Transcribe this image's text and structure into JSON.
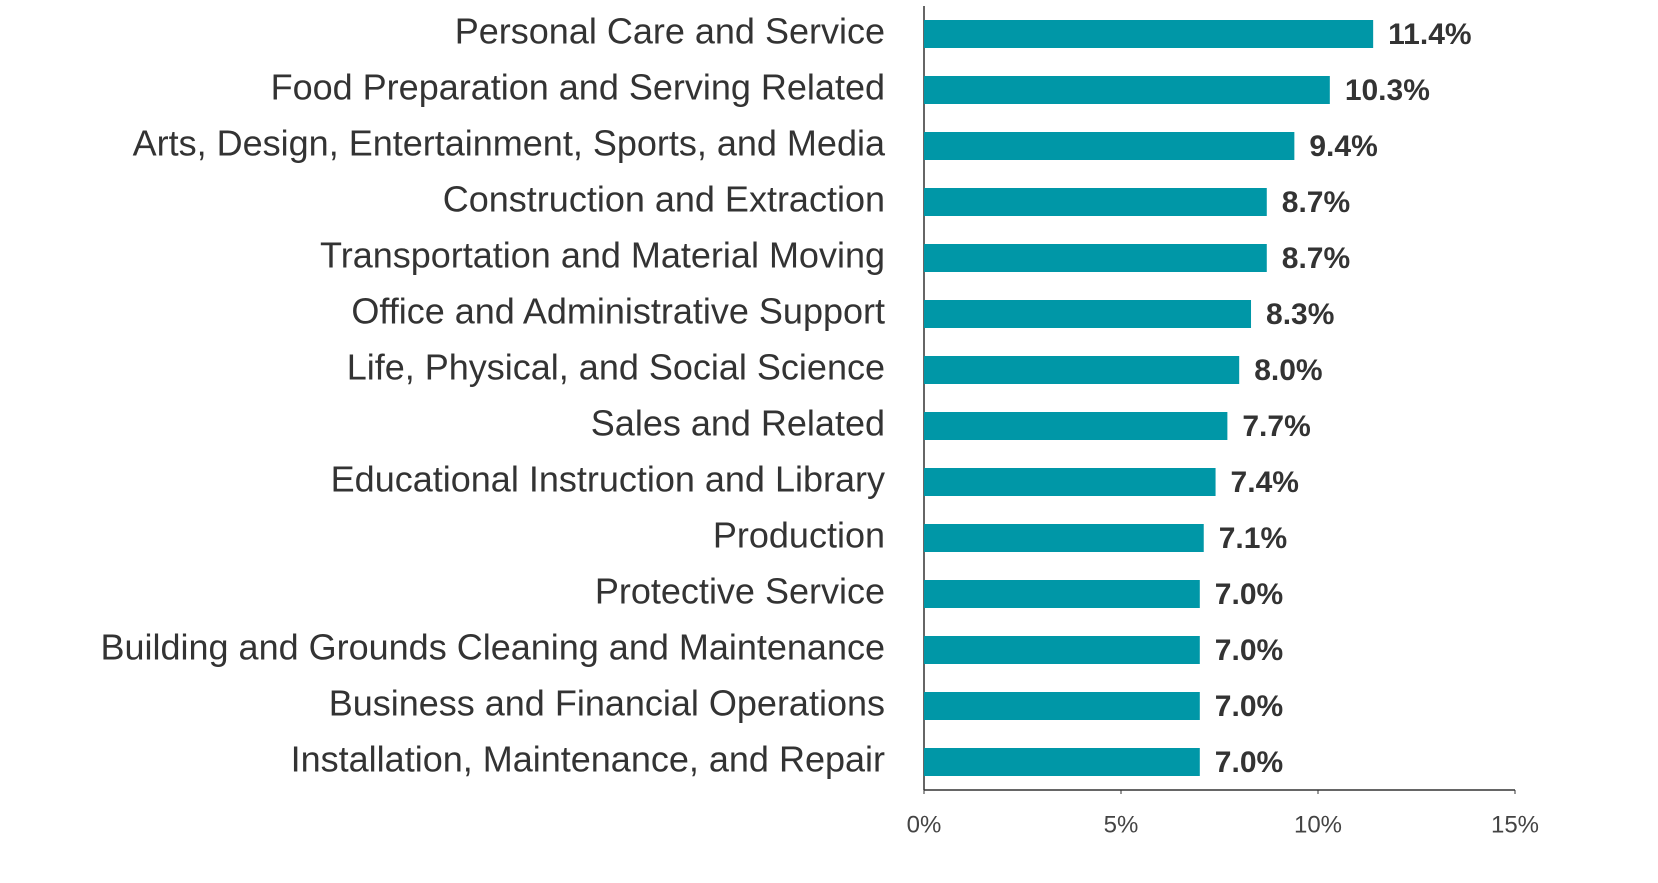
{
  "chart_data": {
    "type": "bar",
    "orientation": "horizontal",
    "color": "#0097a7",
    "categories": [
      "Personal Care and Service",
      "Food Preparation and Serving Related",
      "Arts, Design, Entertainment, Sports, and Media",
      "Construction and Extraction",
      "Transportation and Material Moving",
      "Office and Administrative Support",
      "Life, Physical, and Social Science",
      "Sales and Related",
      "Educational Instruction and Library",
      "Production",
      "Protective Service",
      "Building and Grounds Cleaning and Maintenance",
      "Business and Financial Operations",
      "Installation, Maintenance, and Repair"
    ],
    "values": [
      11.4,
      10.3,
      9.4,
      8.7,
      8.7,
      8.3,
      8.0,
      7.7,
      7.4,
      7.1,
      7.0,
      7.0,
      7.0,
      7.0
    ],
    "value_labels": [
      "11.4%",
      "10.3%",
      "9.4%",
      "8.7%",
      "8.7%",
      "8.3%",
      "8.0%",
      "7.7%",
      "7.4%",
      "7.1%",
      "7.0%",
      "7.0%",
      "7.0%",
      "7.0%"
    ],
    "xlim": [
      0,
      15
    ],
    "xticks": [
      {
        "value": 0,
        "label": "0%"
      },
      {
        "value": 5,
        "label": "5%"
      },
      {
        "value": 10,
        "label": "10%"
      },
      {
        "value": 15,
        "label": "15%"
      }
    ],
    "grid": false
  }
}
